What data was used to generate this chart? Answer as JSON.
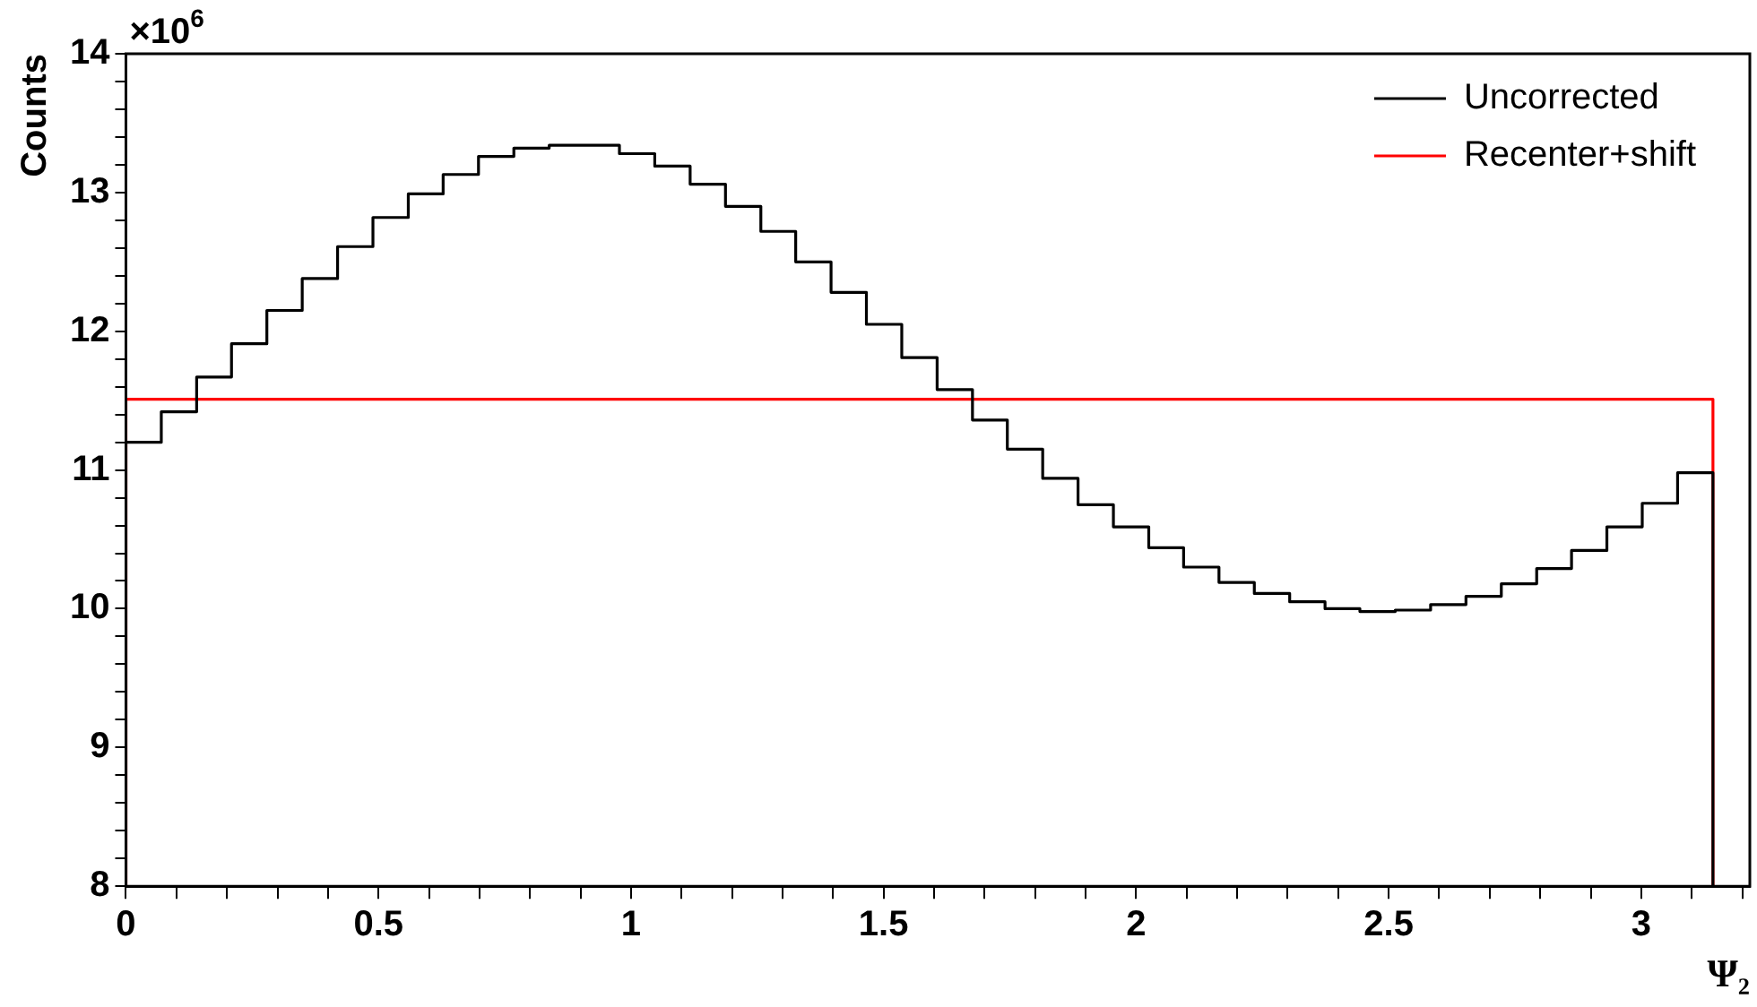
{
  "chart_data": {
    "type": "histogram",
    "xlabel": "Ψ₂",
    "ylabel": "Counts",
    "annotations": [
      "×10$^{6}$"
    ],
    "bins": [
      0,
      0.07,
      0.14,
      0.209,
      0.279,
      0.349,
      0.419,
      0.489,
      0.559,
      0.628,
      0.698,
      0.768,
      0.838,
      0.908,
      0.977,
      1.047,
      1.117,
      1.187,
      1.257,
      1.326,
      1.396,
      1.466,
      1.536,
      1.606,
      1.676,
      1.745,
      1.815,
      1.885,
      1.955,
      2.025,
      2.094,
      2.164,
      2.234,
      2.304,
      2.374,
      2.443,
      2.513,
      2.583,
      2.653,
      2.723,
      2.793,
      2.862,
      2.932,
      3.002,
      3.072,
      3.142
    ],
    "series": [
      {
        "name": "Uncorrected",
        "color": "#000000",
        "values": [
          11.2,
          11.42,
          11.67,
          11.91,
          12.15,
          12.38,
          12.61,
          12.82,
          12.99,
          13.13,
          13.26,
          13.32,
          13.34,
          13.34,
          13.28,
          13.19,
          13.06,
          12.9,
          12.72,
          12.5,
          12.28,
          12.05,
          11.81,
          11.58,
          11.36,
          11.15,
          10.94,
          10.75,
          10.59,
          10.44,
          10.3,
          10.19,
          10.11,
          10.05,
          10.0,
          9.98,
          9.99,
          10.03,
          10.09,
          10.18,
          10.29,
          10.42,
          10.59,
          10.76,
          10.98
        ]
      },
      {
        "name": "Recenter+shift",
        "color": "#ff0000",
        "values": [
          11.51,
          11.51,
          11.51,
          11.51,
          11.51,
          11.51,
          11.51,
          11.51,
          11.51,
          11.51,
          11.51,
          11.51,
          11.51,
          11.51,
          11.51,
          11.51,
          11.51,
          11.51,
          11.51,
          11.51,
          11.51,
          11.51,
          11.51,
          11.51,
          11.51,
          11.51,
          11.51,
          11.51,
          11.51,
          11.51,
          11.51,
          11.51,
          11.51,
          11.51,
          11.51,
          11.51,
          11.51,
          11.51,
          11.51,
          11.51,
          11.51,
          11.51,
          11.51,
          11.51,
          11.51
        ]
      }
    ],
    "xlim": [
      0,
      3.215
    ],
    "xticks": [
      0,
      {
        "value": 0.1,
        "label": null
      },
      {
        "value": 0.2,
        "label": null
      },
      {
        "value": 0.3,
        "label": null
      },
      {
        "value": 0.4,
        "label": null
      },
      0.5,
      {
        "value": 0.6,
        "label": null
      },
      {
        "value": 0.7,
        "label": null
      },
      {
        "value": 0.8,
        "label": null
      },
      {
        "value": 0.9,
        "label": null
      },
      1,
      {
        "value": 1.1,
        "label": null
      },
      {
        "value": 1.2,
        "label": null
      },
      {
        "value": 1.3,
        "label": null
      },
      {
        "value": 1.4,
        "label": null
      },
      1.5,
      {
        "value": 1.6,
        "label": null
      },
      {
        "value": 1.7,
        "label": null
      },
      {
        "value": 1.8,
        "label": null
      },
      {
        "value": 1.9,
        "label": null
      },
      2,
      {
        "value": 2.1,
        "label": null
      },
      {
        "value": 2.2,
        "label": null
      },
      {
        "value": 2.3,
        "label": null
      },
      {
        "value": 2.4,
        "label": null
      },
      2.5,
      {
        "value": 2.6,
        "label": null
      },
      {
        "value": 2.7,
        "label": null
      },
      {
        "value": 2.8,
        "label": null
      },
      {
        "value": 2.9,
        "label": null
      },
      3,
      {
        "value": 3.1,
        "label": null
      },
      {
        "value": 3.2,
        "label": null
      }
    ],
    "ylim": [
      8,
      14
    ],
    "yticks": [
      8,
      {
        "value": 8.2,
        "label": null
      },
      {
        "value": 8.4,
        "label": null
      },
      {
        "value": 8.6,
        "label": null
      },
      {
        "value": 8.8,
        "label": null
      },
      9,
      {
        "value": 9.2,
        "label": null
      },
      {
        "value": 9.4,
        "label": null
      },
      {
        "value": 9.6,
        "label": null
      },
      {
        "value": 9.8,
        "label": null
      },
      10,
      {
        "value": 10.2,
        "label": null
      },
      {
        "value": 10.4,
        "label": null
      },
      {
        "value": 10.6,
        "label": null
      },
      {
        "value": 10.8,
        "label": null
      },
      11,
      {
        "value": 11.2,
        "label": null
      },
      {
        "value": 11.4,
        "label": null
      },
      {
        "value": 11.6,
        "label": null
      },
      {
        "value": 11.8,
        "label": null
      },
      12,
      {
        "value": 12.2,
        "label": null
      },
      {
        "value": 12.4,
        "label": null
      },
      {
        "value": 12.6,
        "label": null
      },
      {
        "value": 12.8,
        "label": null
      },
      13,
      {
        "value": 13.2,
        "label": null
      },
      {
        "value": 13.4,
        "label": null
      },
      {
        "value": 13.6,
        "label": null
      },
      {
        "value": 13.8,
        "label": null
      },
      14
    ],
    "grid": false,
    "legend": "top right"
  }
}
